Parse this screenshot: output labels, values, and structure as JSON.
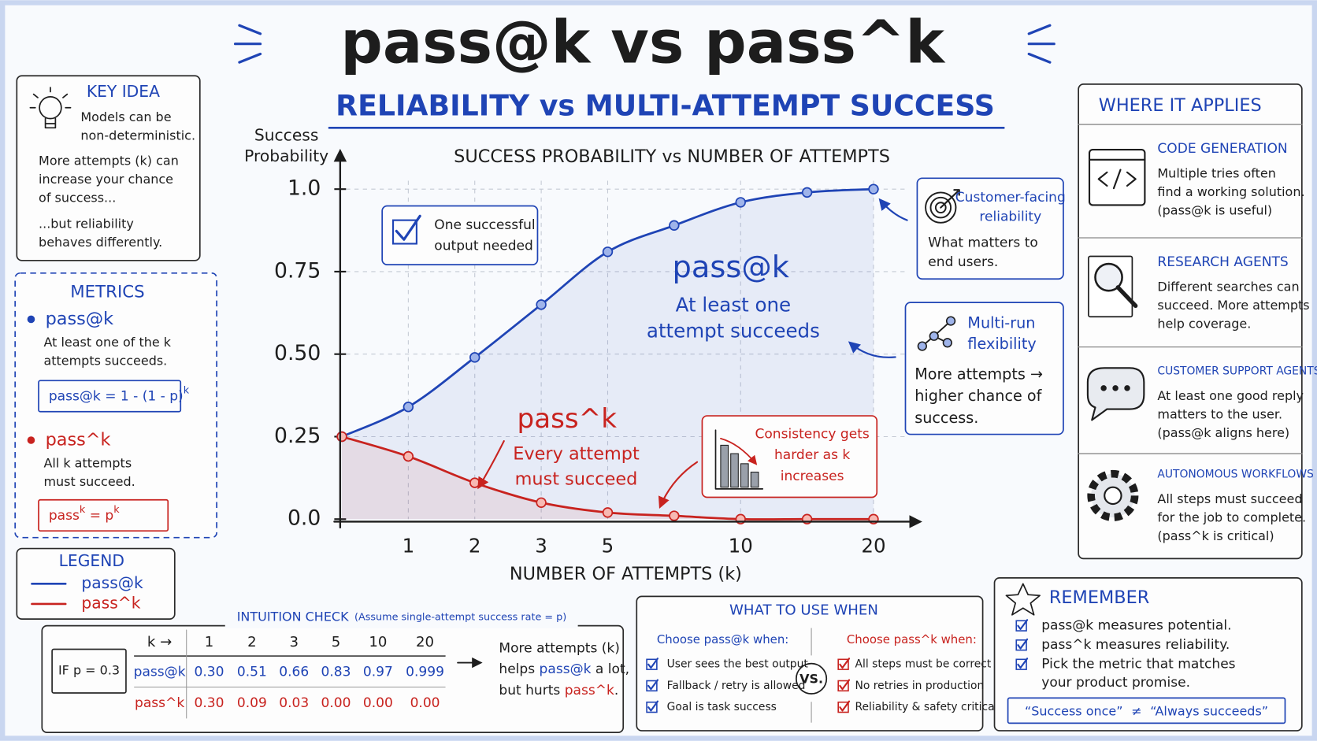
{
  "title": "pass@k vs pass^k",
  "subtitle": "RELIABILITY vs MULTI-ATTEMPT SUCCESS",
  "chart_data": {
    "type": "line",
    "title": "SUCCESS PROBABILITY vs NUMBER OF ATTEMPTS",
    "y_label": [
      "Success",
      "Probability"
    ],
    "x_label": "NUMBER OF ATTEMPTS (k)",
    "categories": [
      null,
      "1",
      "2",
      "3",
      "5",
      null,
      "10",
      null,
      "20"
    ],
    "series": [
      {
        "name": "pass@k",
        "color": "#1f44b5",
        "values": [
          0.25,
          0.34,
          0.49,
          0.65,
          0.81,
          0.89,
          0.96,
          0.99,
          1.0
        ]
      },
      {
        "name": "pass^k",
        "color": "#c8231f",
        "values": [
          0.25,
          0.19,
          0.11,
          0.05,
          0.02,
          0.01,
          0.0,
          0.0,
          0.0
        ]
      }
    ],
    "ylim": [
      0,
      1
    ],
    "yticks": [
      {
        "value": 0,
        "label": "0.0"
      },
      0.25,
      {
        "value": 0.5,
        "label": "0.50"
      },
      0.75,
      {
        "value": 1,
        "label": "1.0"
      }
    ],
    "grid": true,
    "legend_title": "LEGEND",
    "annotations": {
      "one_success": [
        "One successful",
        "output needed"
      ],
      "passk_name": "pass@k",
      "passk_desc": [
        "At least one",
        "attempt succeeds"
      ],
      "pow_name": "pass^k",
      "pow_desc": [
        "Every attempt",
        "must succeed"
      ],
      "customer": {
        "title": [
          "Customer-facing",
          "reliability"
        ],
        "body": [
          "What matters to",
          "end users."
        ]
      },
      "multirun": {
        "title": [
          "Multi-run",
          "flexibility"
        ],
        "body": [
          "More attempts →",
          "higher chance of",
          "success."
        ]
      },
      "consistency": [
        "Consistency gets",
        "harder as k",
        "increases"
      ]
    }
  },
  "key_idea": {
    "title": "KEY IDEA",
    "lines_a": [
      "Models can be",
      "non-deterministic."
    ],
    "lines_b": [
      "More attempts (k) can",
      "increase your chance",
      "of success..."
    ],
    "lines_c": [
      "...but reliability",
      "behaves differently."
    ]
  },
  "metrics": {
    "title": "METRICS",
    "items": [
      {
        "name": "pass@k",
        "desc": [
          "At least one of the k",
          "attempts succeeds."
        ],
        "formula": [
          "pass@k = 1 - (1 - p)",
          "k"
        ]
      },
      {
        "name": "pass^k",
        "desc": [
          "All k attempts",
          "must succeed."
        ],
        "formula": [
          "pass",
          "k",
          " = p",
          "k"
        ]
      }
    ]
  },
  "intuition": {
    "title": "INTUITION CHECK",
    "note": "(Assume single-attempt success rate = p)",
    "condition": "IF p = 0.3",
    "header": [
      "k →",
      "1",
      "2",
      "3",
      "5",
      "10",
      "20"
    ],
    "rows": [
      [
        "pass@k",
        "0.30",
        "0.51",
        "0.66",
        "0.83",
        "0.97",
        "0.999"
      ],
      [
        "pass^k",
        "0.30",
        "0.09",
        "0.03",
        "0.00",
        "0.00",
        "0.00"
      ]
    ],
    "comment": [
      [
        "More attempts (k)"
      ],
      [
        "helps ",
        "pass@k",
        " a lot,"
      ],
      [
        "but hurts ",
        "pass^k",
        "."
      ]
    ]
  },
  "what_to_use": {
    "title": "WHAT TO USE WHEN",
    "vs": "VS.",
    "left": {
      "heading": "Choose pass@k when:",
      "items": [
        "User sees the best output",
        "Fallback / retry is allowed",
        "Goal is task success"
      ]
    },
    "right": {
      "heading": "Choose pass^k when:",
      "items": [
        "All steps must be correct",
        "No retries in production",
        "Reliability & safety critical"
      ]
    }
  },
  "where_applies": {
    "title": "WHERE IT APPLIES",
    "items": [
      {
        "title": "CODE GENERATION",
        "lines": [
          "Multiple tries often",
          "find a working solution.",
          "(pass@k is useful)"
        ]
      },
      {
        "title": "RESEARCH AGENTS",
        "lines": [
          "Different searches can",
          "succeed. More attempts",
          "help coverage."
        ]
      },
      {
        "title": "CUSTOMER SUPPORT AGENTS",
        "lines": [
          "At least one good reply",
          "matters to the user.",
          "(pass@k aligns here)"
        ]
      },
      {
        "title": "AUTONOMOUS WORKFLOWS",
        "lines": [
          "All steps must succeed",
          "for the job to complete.",
          "(pass^k is critical)"
        ]
      }
    ]
  },
  "remember": {
    "title": "REMEMBER",
    "items": [
      [
        "pass@k measures potential."
      ],
      [
        "pass^k  measures reliability."
      ],
      [
        "Pick the metric that matches",
        "your product promise."
      ]
    ],
    "footer": [
      "“Success once”",
      "≠",
      "“Always succeeds”"
    ]
  }
}
